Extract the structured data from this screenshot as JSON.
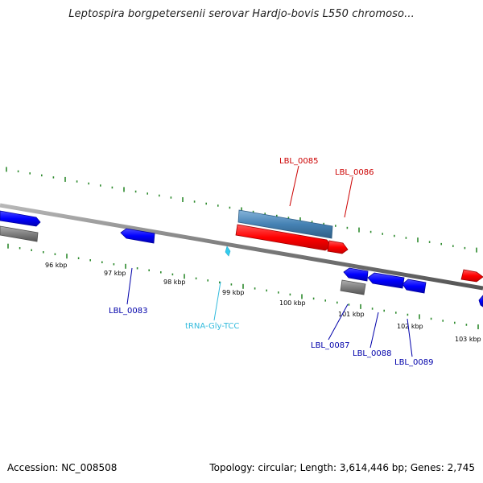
{
  "title": "Leptospira borgpetersenii serovar Hardjo-bovis L550 chromoso...",
  "footer": {
    "accession": "Accession: NC_008508",
    "stats": "Topology: circular; Length: 3,614,446 bp; Genes: 2,745"
  },
  "scale_labels": [
    "96 kbp",
    "97 kbp",
    "98 kbp",
    "99 kbp",
    "100 kbp",
    "101 kbp",
    "102 kbp",
    "103 kbp"
  ],
  "gene_labels": [
    "LBL_0085",
    "LBL_0086",
    "LBL_0083",
    "tRNA-Gly-TCC",
    "LBL_0087",
    "LBL_0088",
    "LBL_0089"
  ],
  "colors": {
    "backbone": "#7f7f7f",
    "tick": "#2e8b2e",
    "cds_forward": "#ff0000",
    "cds_reverse": "#0000ff",
    "gene": "#7f7f7f",
    "gene_highlight": "#4682b4",
    "trna": "#33ccee",
    "label_forward": "#cc0000",
    "label_reverse": "#0000aa",
    "label_trna": "#33bbdd"
  }
}
